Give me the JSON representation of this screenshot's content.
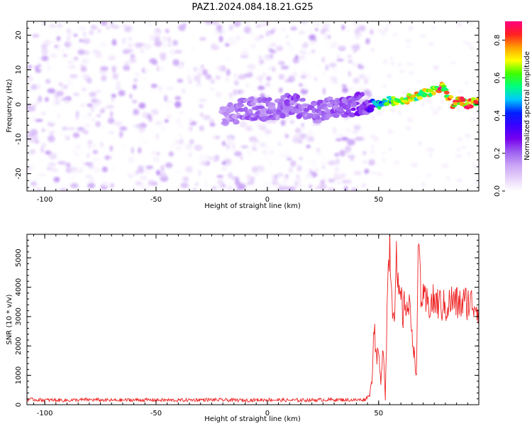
{
  "title": "PAZ1.2024.084.18.21.G25",
  "chart_data": [
    {
      "type": "heatmap",
      "title": "PAZ1.2024.084.18.21.G25",
      "xlabel": "Height of straight line (km)",
      "ylabel": "Frequency (Hz)",
      "xlim": [
        -108,
        95
      ],
      "ylim": [
        -25,
        24
      ],
      "xticks": [
        -100,
        -50,
        0,
        50
      ],
      "yticks": [
        -20,
        -10,
        0,
        10,
        20
      ],
      "xtick_labels": [
        "-100",
        "-50",
        "0",
        "50"
      ],
      "ytick_labels": [
        "-20",
        "-10",
        "0",
        "10",
        "20"
      ],
      "colormap": [
        "#ffffff",
        "#e6d2fa",
        "#c9a3f5",
        "#9d5ff0",
        "#7700ee",
        "#3b00ff",
        "#0020ff",
        "#00c8ff",
        "#00ff80",
        "#40ff00",
        "#ffff00",
        "#ffa000",
        "#ff2020",
        "#ff0080"
      ],
      "colorbar": {
        "label": "Normalized spectral amplitude",
        "range": [
          0,
          0.9
        ],
        "ticks": [
          0.0,
          0.2,
          0.4,
          0.6,
          0.8
        ],
        "tick_labels": [
          "0.0",
          "0.2",
          "0.4",
          "0.6",
          "0.8"
        ]
      },
      "signal_track": {
        "x": [
          -20,
          -10,
          0,
          10,
          20,
          30,
          40,
          45,
          50,
          55,
          60,
          65,
          70,
          75,
          78,
          80,
          83,
          86,
          90,
          95
        ],
        "freq": [
          -4,
          -1,
          -1.5,
          0,
          -2,
          -1,
          0,
          0.5,
          0,
          1,
          1,
          2,
          3,
          4,
          5,
          4,
          0,
          1,
          0,
          1
        ],
        "amplitude": [
          0.15,
          0.2,
          0.2,
          0.22,
          0.2,
          0.22,
          0.25,
          0.25,
          0.55,
          0.6,
          0.65,
          0.7,
          0.7,
          0.72,
          0.85,
          0.7,
          0.75,
          0.8,
          0.85,
          0.8
        ]
      }
    },
    {
      "type": "line",
      "xlabel": "Height of straight line (km)",
      "ylabel": "SNR (10 * v/v)",
      "xlim": [
        -108,
        95
      ],
      "ylim": [
        0,
        5800
      ],
      "xticks": [
        -100,
        -50,
        0,
        50
      ],
      "yticks": [
        0,
        1000,
        2000,
        3000,
        4000,
        5000
      ],
      "xtick_labels": [
        "-100",
        "-50",
        "0",
        "50"
      ],
      "ytick_labels": [
        "0",
        "1000",
        "2000",
        "3000",
        "4000",
        "5000"
      ],
      "color": "#ee2222",
      "series": [
        {
          "x": [
            -108,
            -100,
            -90,
            -80,
            -70,
            -60,
            -50,
            -40,
            -30,
            -20,
            -10,
            0,
            10,
            20,
            30,
            40,
            44,
            46,
            47,
            48,
            49,
            50,
            51,
            52,
            53,
            54,
            55,
            56,
            57,
            58,
            59,
            60,
            61,
            62,
            63,
            64,
            65,
            66,
            67,
            68,
            69,
            70,
            72,
            75,
            78,
            80,
            83,
            86,
            90,
            95
          ],
          "y": [
            180,
            160,
            150,
            170,
            150,
            160,
            160,
            150,
            170,
            160,
            150,
            170,
            150,
            160,
            170,
            160,
            180,
            350,
            900,
            2800,
            1500,
            1800,
            600,
            2200,
            300,
            4000,
            5600,
            3600,
            3200,
            4800,
            3500,
            3700,
            3000,
            3600,
            3300,
            3200,
            2600,
            1700,
            1000,
            5800,
            3800,
            3500,
            3400,
            3500,
            3400,
            3300,
            3550,
            3400,
            3500,
            3350
          ]
        }
      ]
    }
  ]
}
